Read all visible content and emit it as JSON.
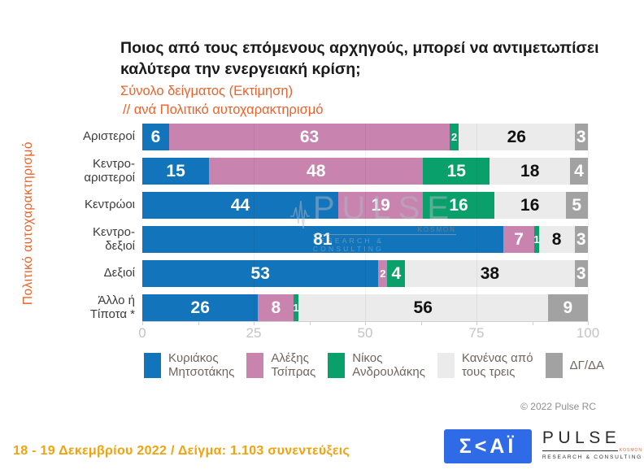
{
  "header": {
    "title": "Ποιος από τους επόμενους αρχηγούς, μπορεί να αντιμετωπίσει καλύτερα την ενεργειακή κρίση;",
    "subtitle_line1": "Σύνολο δείγματος  (Εκτίμηση)",
    "subtitle_line2": "// ανά Πολιτικό αυτοχαρακτηρισμό"
  },
  "chart_data": {
    "type": "bar",
    "orientation": "horizontal",
    "stacked": true,
    "title": "Ποιος από τους επόμενους αρχηγούς, μπορεί να αντιμετωπίσει καλύτερα την ενεργειακή κρίση;",
    "y_axis_title": "Πολιτικό αυτοχαρακτηρισμό",
    "categories": [
      "Αριστεροί",
      "Κεντρο-αριστεροί",
      "Κεντρώοι",
      "Κεντρο-δεξιοί",
      "Δεξιοί",
      "Άλλο ή Τίποτα *"
    ],
    "categories_display": [
      [
        "Αριστεροί"
      ],
      [
        "Κεντρο-",
        "αριστεροί"
      ],
      [
        "Κεντρώοι"
      ],
      [
        "Κεντρο-",
        "δεξιοί"
      ],
      [
        "Δεξιοί"
      ],
      [
        "Άλλο ή",
        "Τίποτα *"
      ]
    ],
    "series": [
      {
        "name": "Κυριάκος Μητσοτάκης",
        "color": "#1274BB",
        "label_color": "#ffffff",
        "values": [
          6,
          15,
          44,
          81,
          53,
          26
        ]
      },
      {
        "name": "Αλέξης Τσίπρας",
        "color": "#C983AF",
        "label_color": "#ffffff",
        "values": [
          63,
          48,
          19,
          7,
          2,
          8
        ]
      },
      {
        "name": "Νίκος Ανδρουλάκης",
        "color": "#0AA06C",
        "label_color": "#ffffff",
        "values": [
          2,
          15,
          16,
          1,
          4,
          1
        ]
      },
      {
        "name": "Κανένας από τους τρεις",
        "color": "#EBEBEB",
        "label_color": "#111111",
        "values": [
          26,
          18,
          16,
          8,
          38,
          56
        ]
      },
      {
        "name": "ΔΓ/ΔΑ",
        "color": "#A2A2A2",
        "label_color": "#ffffff",
        "values": [
          3,
          4,
          5,
          3,
          3,
          9
        ]
      }
    ],
    "xlim": [
      0,
      100
    ],
    "x_ticks": [
      0,
      25,
      50,
      75,
      100
    ],
    "x_minor_tick_step": 12.5,
    "grid": "vertical-major",
    "legend_position": "bottom"
  },
  "legend": {
    "items": [
      {
        "line1": "Κυριάκος",
        "line2": "Μητσοτάκης"
      },
      {
        "line1": "Αλέξης",
        "line2": "Τσίπρας"
      },
      {
        "line1": "Νίκος",
        "line2": "Ανδρουλάκης"
      },
      {
        "line1": "Κανένας από",
        "line2": "τους τρεις"
      },
      {
        "line1": "ΔΓ/ΔΑ",
        "line2": ""
      }
    ]
  },
  "watermark": {
    "brand": "PULSE",
    "tag": "KOSMON",
    "sub": "RESEARCH & CONSULTING"
  },
  "copyright": "© 2022 Pulse RC",
  "footer": {
    "date_sample": "18 - 19  Δεκεμβρίου  2022  /  Δείγμα:  1.103 συνεντεύξεις",
    "skai_logo_text": "Σ<ΑΪ",
    "pulse_logo": {
      "brand": "PULSE",
      "tag": "KOSMON",
      "sub": "RESEARCH & CONSULTING"
    }
  },
  "colors": {
    "accent_orange": "#E8632C",
    "footer_amber": "#F0A30F",
    "skai_blue": "#2F6BE6"
  }
}
